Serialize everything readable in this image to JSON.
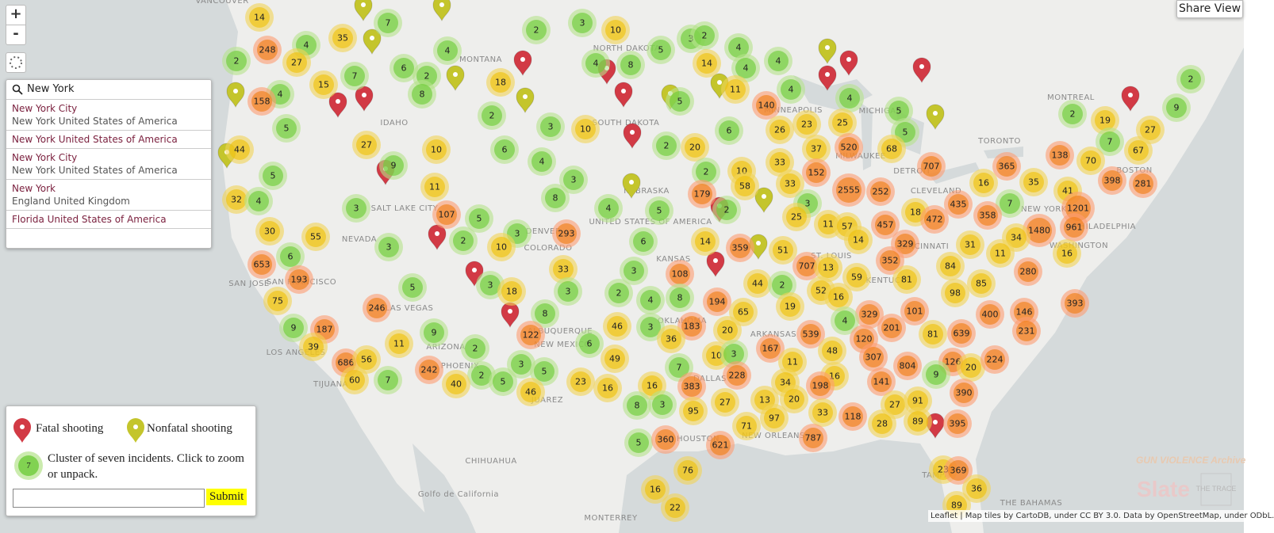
{
  "zoom_in": "+",
  "zoom_out": "-",
  "search": {
    "query": "New York",
    "results": [
      {
        "title": "New York City",
        "subtitle": "New York United States of America"
      },
      {
        "title": "New York United States of America"
      },
      {
        "title": "New York City",
        "subtitle": "New York United States of America"
      },
      {
        "title": "New York",
        "subtitle": "England United Kingdom"
      },
      {
        "title": "Florida United States of America"
      }
    ]
  },
  "share_view": "Share View",
  "legend": {
    "fatal": "Fatal shooting",
    "nonfatal": "Nonfatal shooting",
    "cluster_count": 7,
    "cluster_text": "Cluster of seven incidents. Click to zoom or unpack.",
    "submit": "Submit"
  },
  "clusters": [
    14,
    7,
    2,
    3,
    10,
    3,
    2,
    35,
    248,
    4,
    4,
    27,
    2,
    5,
    4,
    4,
    4,
    4,
    8,
    14,
    6,
    2,
    7,
    15,
    18,
    2,
    4,
    158,
    8,
    4,
    11,
    5,
    4,
    9,
    140,
    5,
    2,
    19,
    5,
    2,
    3,
    10,
    27,
    26,
    23,
    25,
    6,
    5,
    44,
    6,
    27,
    10,
    2,
    20,
    37,
    520,
    68,
    7,
    67,
    138,
    70,
    4,
    9,
    5,
    3,
    2,
    10,
    33,
    152,
    707,
    365,
    16,
    35,
    398,
    281,
    11,
    8,
    33,
    58,
    179,
    2555,
    252,
    41,
    32,
    4,
    3,
    4,
    5,
    2,
    3,
    1201,
    7,
    435,
    358,
    107,
    5,
    25,
    11,
    57,
    457,
    18,
    472,
    961,
    1480,
    30,
    55,
    293,
    3,
    2,
    3,
    10,
    6,
    14,
    359,
    51,
    14,
    329,
    31,
    34,
    11,
    16,
    653,
    6,
    33,
    3,
    707,
    13,
    352,
    84,
    280,
    193,
    108,
    5,
    3,
    18,
    3,
    2,
    44,
    2,
    52,
    59,
    81,
    85,
    98,
    75,
    246,
    4,
    8,
    194,
    16,
    19,
    393,
    65,
    101,
    329,
    400,
    146,
    8,
    9,
    187,
    9,
    46,
    3,
    183,
    20,
    4,
    201,
    81,
    639,
    231,
    39,
    122,
    36,
    2,
    6,
    11,
    167,
    539,
    48,
    120,
    10,
    3,
    307,
    686,
    56,
    49,
    11,
    804,
    126,
    20,
    224,
    3,
    5,
    7,
    242,
    7,
    2,
    60,
    40,
    5,
    9,
    228,
    16,
    34,
    198,
    141,
    23,
    383,
    46,
    16,
    16,
    13,
    20,
    390,
    27,
    8,
    3,
    95,
    27,
    91,
    97,
    33,
    118,
    28,
    89,
    395,
    71,
    787,
    5,
    360,
    621,
    76,
    23,
    369,
    36,
    16,
    22,
    89
  ],
  "map_labels": [
    "VANCOUVER",
    "MONTANA",
    "IDAHO",
    "NORTH DAKOTA",
    "SOUTH DAKOTA",
    "NEBRASKA",
    "UNITED STATES OF AMERICA",
    "SALT LAKE CITY",
    "NEVADA",
    "DENVER",
    "COLORADO",
    "KANSAS",
    "SAN JOSE",
    "SAN FRANCISCO",
    "LAS VEGAS",
    "LOS ANGELES",
    "TIJUANA",
    "PHOENIX",
    "ARIZONA",
    "NEW MEXICO",
    "ALBUQUERQUE",
    "JUAREZ",
    "CHIHUAHUA",
    "MONTERREY",
    "Golfo de California",
    "HOUSTON",
    "DALLAS",
    "OKLAHOMA",
    "ARKANSAS",
    "NEW ORLEANS",
    "ST. LOUIS",
    "KENTUCKY",
    "MINNEAPOLIS",
    "MILWAUKEE",
    "MICHIGAN",
    "DETROIT",
    "CLEVELAND",
    "CINCINNATI",
    "TORONTO",
    "MONTREAL",
    "NEW YORK",
    "PHILADELPHIA",
    "WASHINGTON",
    "BOSTON",
    "TAMPA",
    "THE BAHAMAS"
  ],
  "attribution": "Leaflet | Map tiles by CartoDB, under CC BY 3.0. Data by OpenStreetMap, under ODbL.",
  "logos": {
    "gva": "GUN VIOLENCE Archive",
    "slate": "Slate",
    "trace": "THE TRACE"
  }
}
